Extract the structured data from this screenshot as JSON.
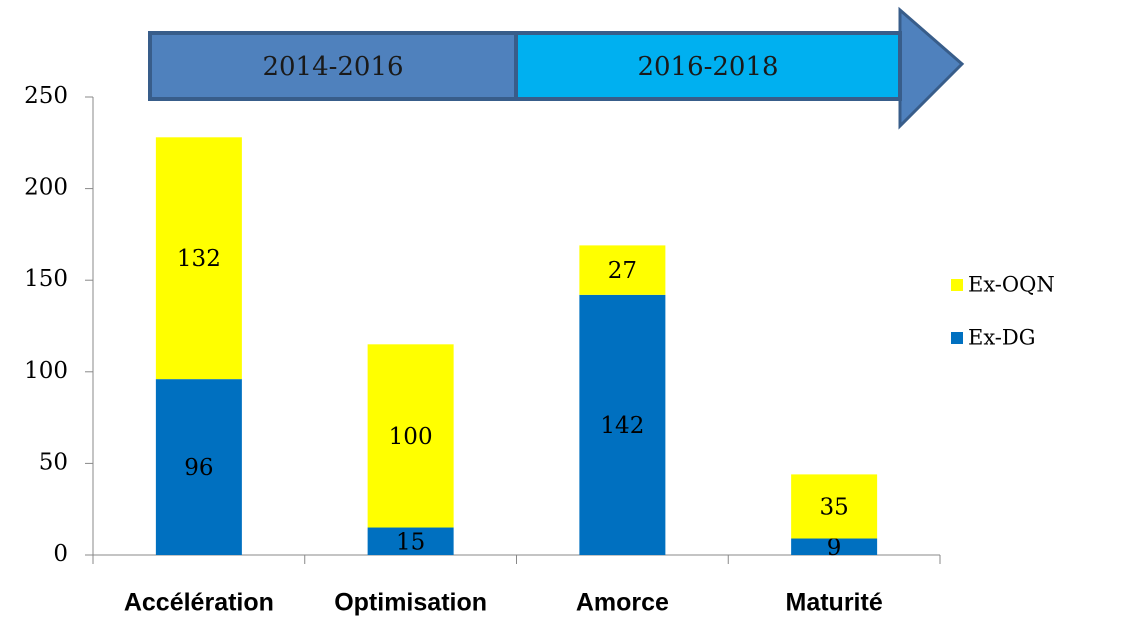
{
  "chart_data": {
    "type": "stacked_bar",
    "annotations": [
      "2014-2016",
      "2016-2018"
    ],
    "categories": [
      "Accélération",
      "Optimisation",
      "Amorce",
      "Maturité"
    ],
    "series": [
      {
        "name": "Ex-DG",
        "color": "#0070c0",
        "values": [
          96,
          15,
          142,
          9
        ]
      },
      {
        "name": "Ex-OQN",
        "color": "#ffff00",
        "values": [
          132,
          100,
          27,
          35
        ]
      }
    ],
    "ylim": [
      0,
      250
    ],
    "yticks": [
      0,
      50,
      100,
      150,
      200,
      250
    ],
    "legend": "right"
  }
}
